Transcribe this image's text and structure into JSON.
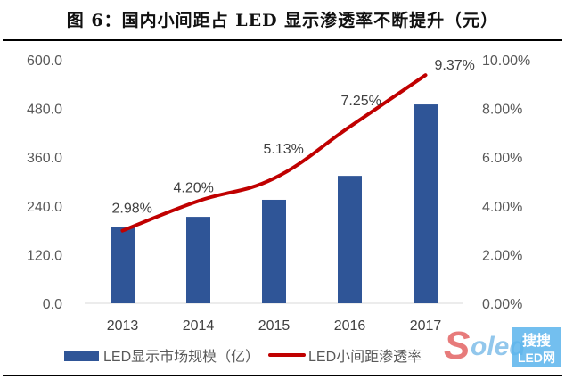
{
  "title": "图 6：国内小间距占 LED 显示渗透率不断提升（元）",
  "watermark": {
    "logo_text": "Soled",
    "badge_text_1": "搜搜",
    "badge_text_2": "LED网"
  },
  "chart_data": {
    "type": "bar+line",
    "title": "图 6：国内小间距占 LED 显示渗透率不断提升（元）",
    "categories": [
      "2013",
      "2014",
      "2015",
      "2016",
      "2017"
    ],
    "series": [
      {
        "name": "LED显示市场规模（亿）",
        "type": "bar",
        "axis": "left",
        "color": "#2F5597",
        "values": [
          189,
          213,
          255,
          314,
          490
        ]
      },
      {
        "name": "LED小间距渗透率",
        "type": "line",
        "axis": "right",
        "color": "#C00000",
        "values": [
          2.98,
          4.2,
          5.13,
          7.25,
          9.37
        ],
        "labels": [
          "2.98%",
          "4.20%",
          "5.13%",
          "7.25%",
          "9.37%"
        ]
      }
    ],
    "y_left": {
      "range": [
        0,
        600
      ],
      "ticks": [
        "0.0",
        "120.0",
        "240.0",
        "360.0",
        "480.0",
        "600.0"
      ]
    },
    "y_right": {
      "range": [
        0,
        10
      ],
      "ticks": [
        "0.00%",
        "2.00%",
        "4.00%",
        "6.00%",
        "8.00%",
        "10.00%"
      ]
    },
    "grid": false,
    "legend_position": "bottom"
  }
}
